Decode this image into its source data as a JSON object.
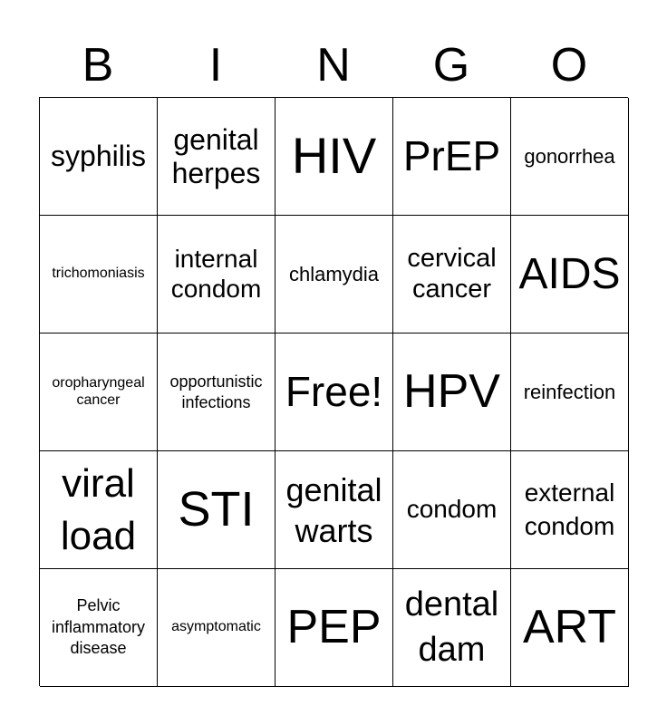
{
  "header": [
    "B",
    "I",
    "N",
    "G",
    "O"
  ],
  "cells": [
    "syphilis",
    "genital herpes",
    "HIV",
    "PrEP",
    "gonorrhea",
    "trichomoniasis",
    "internal condom",
    "chlamydia",
    "cervical cancer",
    "AIDS",
    "oropharyngeal cancer",
    "opportunistic infections",
    "Free!",
    "HPV",
    "reinfection",
    "viral load",
    "STI",
    "genital warts",
    "condom",
    "external condom",
    "Pelvic inflammatory disease",
    "asymptomatic",
    "PEP",
    "dental dam",
    "ART"
  ]
}
